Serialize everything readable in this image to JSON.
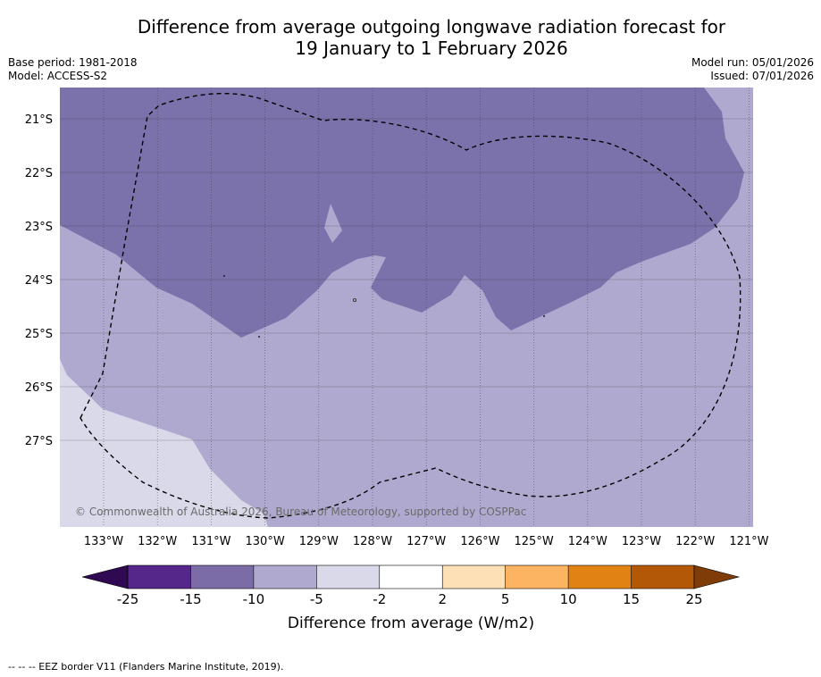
{
  "title_line1": "Difference from average outgoing longwave radiation forecast for",
  "title_line2": "19 January to 1 February 2026",
  "base_period": "Base period: 1981-2018",
  "model": "Model: ACCESS-S2",
  "model_run": "Model run: 05/01/2026",
  "issued": "Issued: 07/01/2026",
  "copyright": "© Commonwealth of Australia 2026, Bureau of Meteorology, supported by COSPPac",
  "lat_labels": [
    "21°S",
    "22°S",
    "23°S",
    "24°S",
    "25°S",
    "26°S",
    "27°S"
  ],
  "lon_labels": [
    "133°W",
    "132°W",
    "131°W",
    "130°W",
    "129°W",
    "128°W",
    "127°W",
    "126°W",
    "125°W",
    "124°W",
    "123°W",
    "122°W",
    "121°W"
  ],
  "colorbar": {
    "ticks": [
      "-25",
      "-15",
      "-10",
      "-5",
      "-2",
      "2",
      "5",
      "10",
      "15",
      "25"
    ],
    "label": "Difference from average (W/m2)",
    "colors": [
      "#2f0a52",
      "#56278a",
      "#7b6ca8",
      "#afa9d0",
      "#d9d9ea",
      "#ffffff",
      "#fee0b6",
      "#fdb462",
      "#e08214",
      "#b35806",
      "#7f3b08"
    ]
  },
  "footnote": "--  --  -- EEZ border V11 (Flanders Marine Institute, 2019)."
}
